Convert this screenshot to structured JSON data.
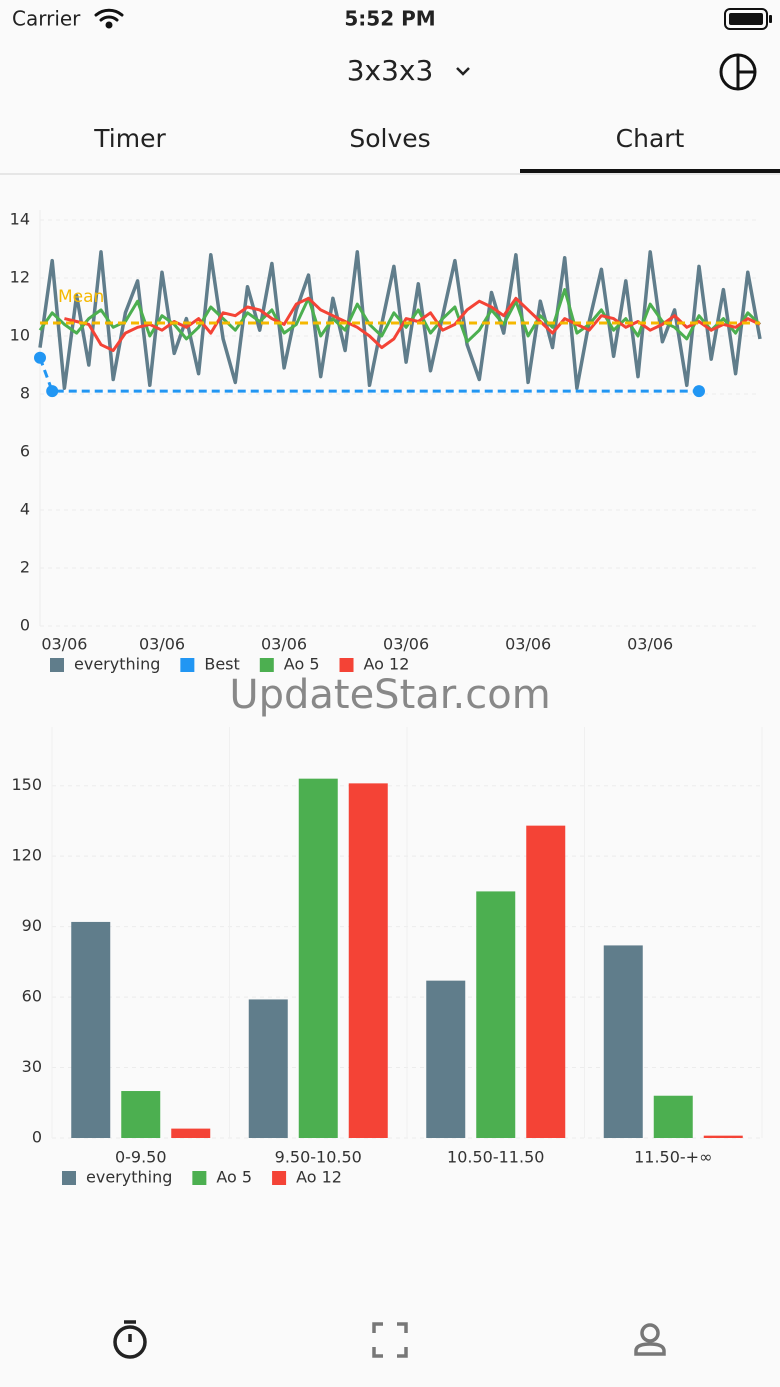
{
  "status_bar": {
    "carrier": "Carrier",
    "time": "5:52 PM"
  },
  "header": {
    "title": "3x3x3"
  },
  "tabs": [
    "Timer",
    "Solves",
    "Chart"
  ],
  "watermark": "UpdateStar.com",
  "chart_data": [
    {
      "type": "line",
      "categories": [
        null,
        null,
        "03/06",
        null,
        null,
        null,
        null,
        null,
        null,
        null,
        "03/06",
        null,
        null,
        null,
        null,
        null,
        null,
        null,
        null,
        null,
        "03/06",
        null,
        null,
        null,
        null,
        null,
        null,
        null,
        null,
        null,
        "03/06",
        null,
        null,
        null,
        null,
        null,
        null,
        null,
        null,
        null,
        "03/06",
        null,
        null,
        null,
        null,
        null,
        null,
        null,
        null,
        null,
        "03/06",
        null,
        null,
        null,
        null,
        null,
        null,
        null,
        null,
        null
      ],
      "series": [
        {
          "name": "everything",
          "color": "#607d8b",
          "values": [
            9.6,
            12.6,
            8.2,
            11.4,
            9.0,
            12.9,
            8.5,
            10.8,
            11.9,
            8.3,
            12.2,
            9.4,
            10.6,
            8.7,
            12.8,
            9.9,
            8.4,
            11.7,
            10.2,
            12.5,
            8.9,
            10.9,
            12.1,
            8.6,
            11.3,
            9.5,
            12.9,
            8.3,
            10.4,
            12.4,
            9.1,
            11.8,
            8.8,
            10.7,
            12.6,
            9.7,
            8.5,
            11.5,
            10.1,
            12.8,
            8.4,
            11.2,
            9.6,
            12.7,
            8.2,
            10.5,
            12.3,
            9.3,
            11.9,
            8.6,
            12.9,
            9.8,
            10.9,
            8.3,
            12.4,
            9.2,
            11.6,
            8.7,
            12.2,
            9.9
          ]
        },
        {
          "name": "Best",
          "color": "#2196f3",
          "dashed": true,
          "values": [
            9.25,
            8.1,
            8.1,
            8.1,
            8.1,
            8.1,
            8.1,
            8.1,
            8.1,
            8.1,
            8.1,
            8.1,
            8.1,
            8.1,
            8.1,
            8.1,
            8.1,
            8.1,
            8.1,
            8.1,
            8.1,
            8.1,
            8.1,
            8.1,
            8.1,
            8.1,
            8.1,
            8.1,
            8.1,
            8.1,
            8.1,
            8.1,
            8.1,
            8.1,
            8.1,
            8.1,
            8.1,
            8.1,
            8.1,
            8.1,
            8.1,
            8.1,
            8.1,
            8.1,
            8.1,
            8.1,
            8.1,
            8.1,
            8.1,
            8.1,
            8.1,
            8.1,
            8.1,
            8.1,
            8.1,
            null,
            null,
            null,
            null,
            null
          ]
        },
        {
          "name": "Ao 5",
          "color": "#4caf50",
          "values": [
            10.2,
            10.8,
            10.4,
            10.1,
            10.6,
            10.9,
            10.3,
            10.5,
            11.2,
            10.0,
            10.7,
            10.4,
            9.9,
            10.3,
            11.0,
            10.6,
            10.2,
            10.8,
            10.5,
            10.9,
            10.1,
            10.4,
            11.3,
            10.0,
            10.6,
            10.2,
            11.1,
            10.4,
            10.0,
            10.8,
            10.3,
            10.9,
            10.1,
            10.6,
            11.0,
            9.8,
            10.2,
            10.9,
            10.4,
            11.2,
            10.0,
            10.7,
            10.3,
            11.6,
            10.1,
            10.4,
            10.9,
            10.2,
            10.6,
            10.0,
            11.1,
            10.5,
            10.3,
            9.9,
            10.7,
            10.2,
            10.6,
            10.1,
            10.8,
            10.4
          ]
        },
        {
          "name": "Ao 12",
          "color": "#f44336",
          "values": [
            null,
            null,
            10.6,
            10.5,
            10.4,
            9.7,
            9.5,
            10.1,
            10.3,
            10.4,
            10.2,
            10.5,
            10.3,
            10.6,
            10.1,
            10.8,
            10.7,
            11.0,
            10.9,
            10.6,
            10.4,
            11.1,
            11.3,
            10.9,
            10.7,
            10.5,
            10.3,
            10.0,
            9.6,
            9.9,
            10.6,
            10.5,
            10.8,
            10.2,
            10.4,
            10.9,
            11.2,
            11.0,
            10.7,
            11.3,
            10.9,
            10.5,
            10.1,
            10.6,
            10.4,
            10.2,
            10.7,
            10.6,
            10.3,
            10.5,
            10.2,
            10.4,
            10.7,
            10.3,
            10.5,
            10.2,
            10.4,
            10.3,
            10.6,
            10.4
          ]
        }
      ],
      "annotations": [
        {
          "label": "Mean",
          "value": 10.45,
          "color": "#f5b800"
        }
      ],
      "ylim": [
        0,
        14
      ],
      "yticks": [
        0,
        2,
        4,
        6,
        8,
        10,
        12,
        14
      ],
      "grid": true
    },
    {
      "type": "bar",
      "categories": [
        "0-9.50",
        "9.50-10.50",
        "10.50-11.50",
        "11.50-+∞"
      ],
      "series": [
        {
          "name": "everything",
          "color": "#607d8b",
          "values": [
            92,
            59,
            67,
            82
          ]
        },
        {
          "name": "Ao 5",
          "color": "#4caf50",
          "values": [
            20,
            153,
            105,
            18
          ]
        },
        {
          "name": "Ao 12",
          "color": "#f44336",
          "values": [
            4,
            151,
            133,
            1
          ]
        }
      ],
      "ylim": [
        0,
        175
      ],
      "yticks": [
        0,
        30,
        60,
        90,
        120,
        150
      ],
      "grid": true
    }
  ]
}
